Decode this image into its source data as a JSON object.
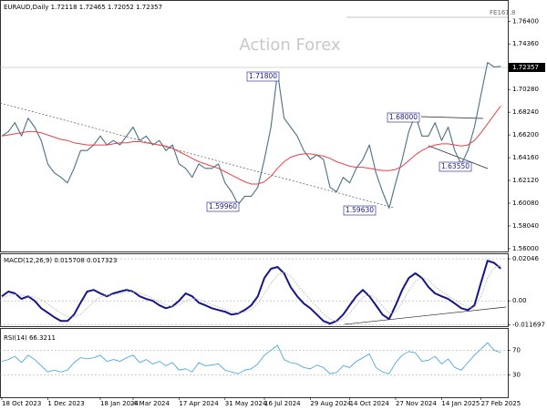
{
  "chart_data": [
    {
      "type": "line",
      "title": "EURAUD,Daily  1.72118 1.72465 1.72052 1.72357",
      "annotations": [
        "Action Forex",
        "FE161.8",
        "1.71800",
        "1.59960",
        "1.59630",
        "1.68000",
        "1.63550"
      ],
      "last_price_label": "1.72357",
      "ylim": [
        1.5575,
        1.7822
      ],
      "yticks": [
        {
          "value": 1.764,
          "label": "1.76400"
        },
        {
          "value": 1.7436,
          "label": "1.74360"
        },
        {
          "value": 1.7028,
          "label": "1.70280"
        },
        {
          "value": 1.6824,
          "label": "1.68240"
        },
        {
          "value": 1.662,
          "label": "1.66200"
        },
        {
          "value": 1.6416,
          "label": "1.64160"
        },
        {
          "value": 1.6212,
          "label": "1.62120"
        },
        {
          "value": 1.6008,
          "label": "1.60080"
        },
        {
          "value": 1.5804,
          "label": "1.58040"
        },
        {
          "value": 1.56,
          "label": "1.56000"
        }
      ],
      "series": [
        {
          "color": "#4a7088",
          "values": [
            1.661,
            1.665,
            1.673,
            1.661,
            1.677,
            1.669,
            1.657,
            1.636,
            1.628,
            1.624,
            1.619,
            1.632,
            1.648,
            1.648,
            1.653,
            1.661,
            1.653,
            1.657,
            1.653,
            1.661,
            1.669,
            1.657,
            1.661,
            1.653,
            1.657,
            1.648,
            1.653,
            1.636,
            1.632,
            1.624,
            1.636,
            1.632,
            1.632,
            1.636,
            1.619,
            1.611,
            1.5996,
            1.607,
            1.607,
            1.615,
            1.64,
            1.669,
            1.718,
            1.677,
            1.669,
            1.661,
            1.648,
            1.64,
            1.644,
            1.64,
            1.615,
            1.611,
            1.624,
            1.619,
            1.632,
            1.64,
            1.653,
            1.628,
            1.611,
            1.5963,
            1.619,
            1.64,
            1.665,
            1.68,
            1.661,
            1.661,
            1.673,
            1.657,
            1.669,
            1.648,
            1.6355,
            1.648,
            1.669,
            1.698,
            1.727,
            1.723,
            1.72357
          ]
        },
        {
          "color": "#e8424a",
          "values": [
            1.661,
            1.662,
            1.663,
            1.664,
            1.665,
            1.665,
            1.664,
            1.662,
            1.66,
            1.658,
            1.657,
            1.655,
            1.654,
            1.653,
            1.653,
            1.653,
            1.653,
            1.654,
            1.655,
            1.655,
            1.656,
            1.656,
            1.655,
            1.654,
            1.653,
            1.652,
            1.65,
            1.647,
            1.644,
            1.641,
            1.638,
            1.636,
            1.634,
            1.632,
            1.629,
            1.626,
            1.623,
            1.62,
            1.618,
            1.618,
            1.62,
            1.625,
            1.632,
            1.638,
            1.642,
            1.644,
            1.645,
            1.645,
            1.644,
            1.643,
            1.641,
            1.638,
            1.636,
            1.634,
            1.633,
            1.633,
            1.632,
            1.631,
            1.63,
            1.63,
            1.631,
            1.634,
            1.639,
            1.644,
            1.648,
            1.651,
            1.653,
            1.654,
            1.654,
            1.653,
            1.652,
            1.653,
            1.657,
            1.664,
            1.672,
            1.68,
            1.688
          ]
        }
      ]
    },
    {
      "type": "line",
      "title": "MACD(12,26,9) 0.015708 0.017323",
      "ylim": [
        -0.01235,
        0.0227
      ],
      "yticks": [
        0.02046,
        {
          "value": 0,
          "label": "0.00"
        },
        -0.011697
      ],
      "series": [
        {
          "color": "#16168a",
          "values": [
            0.0022,
            0.0045,
            0.0036,
            0.0009,
            0.0022,
            0,
            -0.0036,
            -0.0058,
            -0.008,
            -0.0098,
            -0.0098,
            -0.0067,
            -0.0009,
            0.0045,
            0.0053,
            0.0036,
            0.0022,
            0.0036,
            0.0045,
            0.0053,
            0.0045,
            0.0022,
            0.0009,
            0,
            -0.0022,
            -0.0036,
            -0.0027,
            0,
            0.0036,
            0.0022,
            -0.0009,
            -0.0022,
            -0.0036,
            -0.0045,
            -0.0053,
            -0.0067,
            -0.0062,
            -0.0045,
            -0.0022,
            0.0022,
            0.0111,
            0.0156,
            0.0165,
            0.0134,
            0.0067,
            0.0022,
            -0.0013,
            -0.0036,
            -0.0067,
            -0.0098,
            -0.0111,
            -0.0098,
            -0.0067,
            -0.0022,
            0.0022,
            0.0053,
            0.0022,
            -0.0022,
            -0.0067,
            -0.0089,
            -0.0022,
            0.0053,
            0.0111,
            0.0134,
            0.0111,
            0.0067,
            0.0036,
            0.0022,
            0.0009,
            -0.0013,
            -0.0036,
            -0.0045,
            -0.0022,
            0.0089,
            0.0195,
            0.0185,
            0.0157
          ]
        },
        {
          "color": "#b8b8b8",
          "values": [
            0.0015,
            0.0025,
            0.0032,
            0.0028,
            0.0024,
            0.0018,
            0.0005,
            -0.0015,
            -0.0038,
            -0.006,
            -0.0076,
            -0.008,
            -0.0065,
            -0.0035,
            -0.0005,
            0.0018,
            0.0028,
            0.003,
            0.0035,
            0.0042,
            0.0045,
            0.0038,
            0.0025,
            0.0012,
            -0.0005,
            -0.002,
            -0.0027,
            -0.002,
            0,
            0.0012,
            0.0008,
            -0.0005,
            -0.0018,
            -0.003,
            -0.0042,
            -0.0054,
            -0.006,
            -0.0056,
            -0.0042,
            -0.0015,
            0.0035,
            0.0085,
            0.0125,
            0.014,
            0.012,
            0.008,
            0.004,
            0.0005,
            -0.003,
            -0.0065,
            -0.009,
            -0.01,
            -0.009,
            -0.006,
            -0.002,
            0.0018,
            0.003,
            0.0012,
            -0.0025,
            -0.006,
            -0.0055,
            -0.001,
            0.005,
            0.0095,
            0.0115,
            0.01,
            0.007,
            0.0045,
            0.0025,
            0.0005,
            -0.0015,
            -0.003,
            -0.0032,
            0.002,
            0.011,
            0.016,
            0.0173
          ]
        }
      ]
    },
    {
      "type": "line",
      "title": "RSI(14) 66.3211",
      "ylim": [
        0,
        100
      ],
      "yticks": [
        70,
        30
      ],
      "categories": [
        "18 Oct 2023",
        null,
        null,
        null,
        null,
        null,
        null,
        "1 Dec 2023",
        null,
        null,
        null,
        null,
        null,
        null,
        null,
        "18 Jan 2024",
        null,
        null,
        null,
        null,
        "4 Mar 2024",
        null,
        null,
        null,
        null,
        null,
        null,
        "17 Apr 2024",
        null,
        null,
        null,
        null,
        null,
        null,
        "31 May 2024",
        null,
        null,
        null,
        null,
        null,
        "16 Jul 2024",
        null,
        null,
        null,
        null,
        null,
        null,
        "29 Aug 2024",
        null,
        null,
        null,
        null,
        null,
        "14 Oct 2024",
        null,
        null,
        null,
        null,
        null,
        null,
        "27 Nov 2024",
        null,
        null,
        null,
        null,
        null,
        null,
        "14 Jan 2025",
        null,
        null,
        null,
        null,
        null,
        "27 Feb 2025",
        null,
        null,
        null
      ],
      "series": [
        {
          "color": "#3a9fe0",
          "values": [
            52,
            55,
            60,
            50,
            62,
            55,
            45,
            35,
            38,
            35,
            38,
            50,
            58,
            56,
            58,
            62,
            52,
            55,
            52,
            58,
            62,
            50,
            55,
            48,
            52,
            45,
            50,
            38,
            40,
            35,
            50,
            45,
            46,
            48,
            38,
            35,
            32,
            38,
            40,
            48,
            62,
            70,
            78,
            55,
            50,
            48,
            42,
            40,
            46,
            42,
            32,
            34,
            45,
            42,
            52,
            58,
            64,
            42,
            35,
            32,
            50,
            62,
            68,
            66,
            52,
            54,
            60,
            48,
            56,
            42,
            38,
            50,
            62,
            72,
            82,
            70,
            66.3211
          ]
        }
      ]
    }
  ]
}
